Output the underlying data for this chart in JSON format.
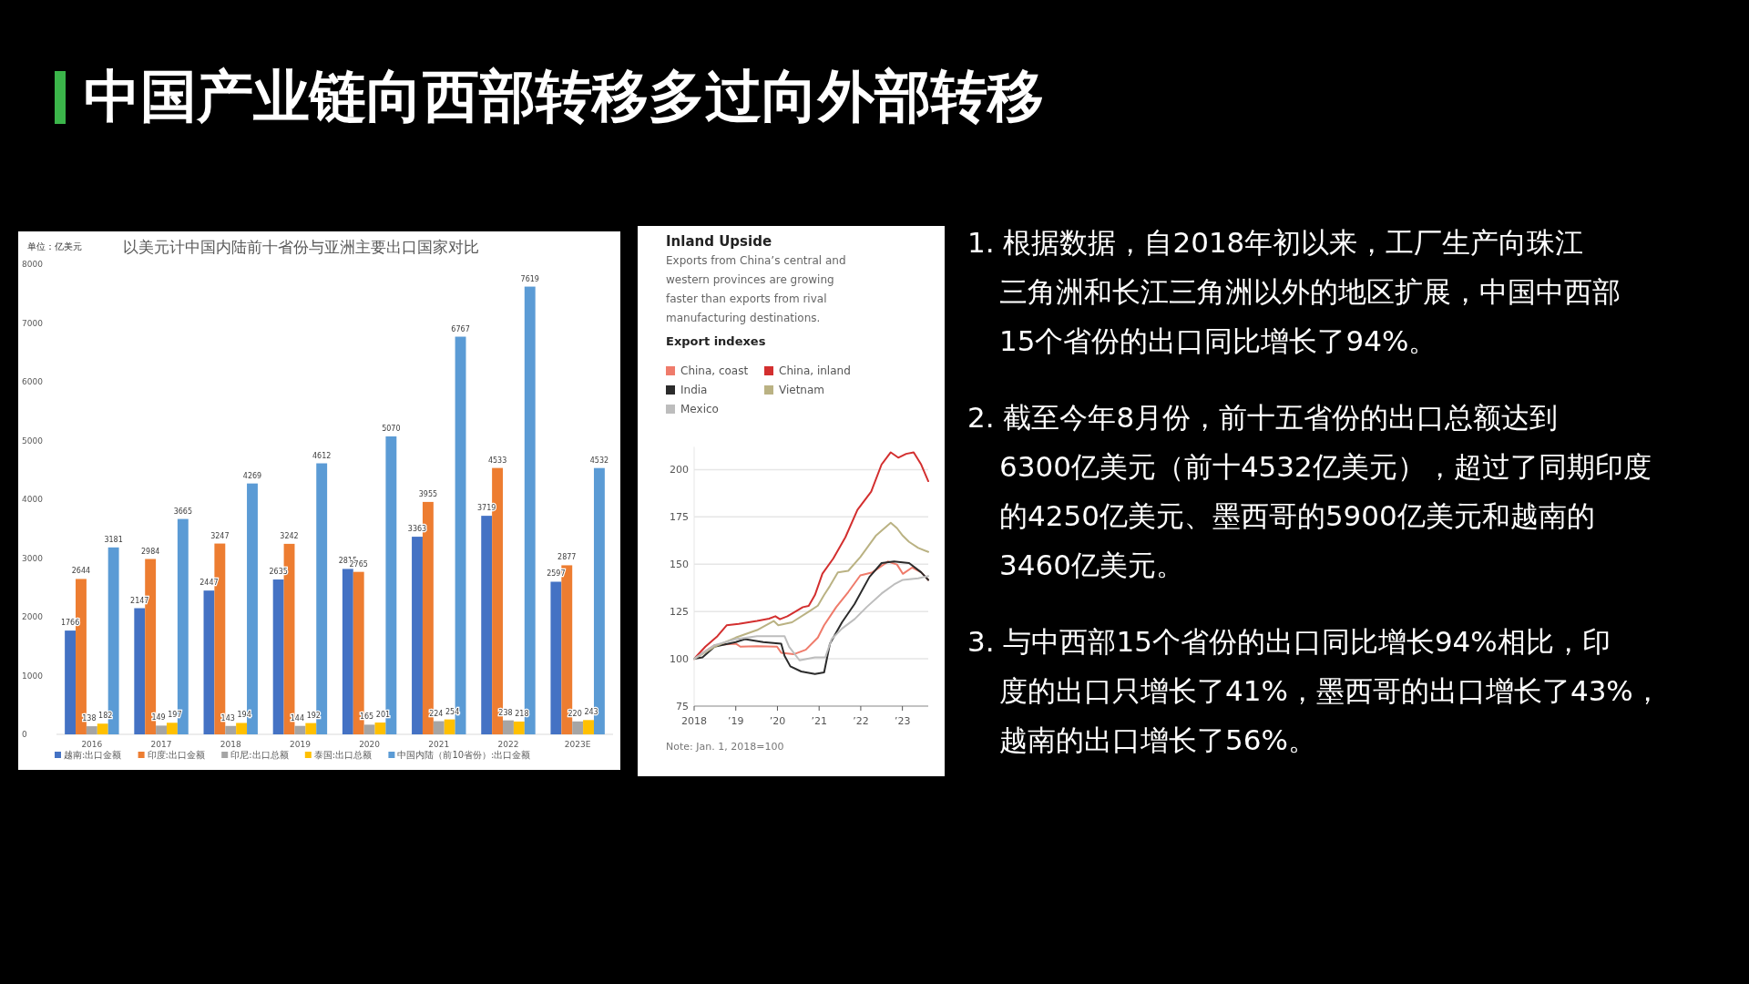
{
  "chart_data": [
    {
      "type": "bar",
      "title": "以美元计中国内陆前十省份与亚洲主要出口国家对比",
      "ylabel": "单位：亿美元",
      "categories": [
        "2016",
        "2017",
        "2018",
        "2019",
        "2020",
        "2021",
        "2022",
        "2023E"
      ],
      "series": [
        {
          "name": "越南:出口金额",
          "color": "#4472c4",
          "values": [
            1766,
            2147,
            2447,
            2635,
            2815,
            3363,
            3719,
            2597
          ]
        },
        {
          "name": "印度:出口金额",
          "color": "#ed7d31",
          "values": [
            2644,
            2984,
            3247,
            3242,
            2765,
            3955,
            4533,
            2877
          ]
        },
        {
          "name": "印尼:出口总额",
          "color": "#a5a5a5",
          "values": [
            138,
            149,
            143,
            144,
            165,
            224,
            238,
            220
          ]
        },
        {
          "name": "泰国:出口总额",
          "color": "#ffc000",
          "values": [
            182,
            197,
            194,
            192,
            201,
            254,
            218,
            243
          ]
        },
        {
          "name": "中国内陆（前10省份）:出口金额",
          "color": "#5b9bd5",
          "values": [
            3181,
            3665,
            4269,
            4612,
            5070,
            6767,
            7619,
            4532
          ]
        }
      ],
      "ylim": [
        0,
        8000
      ],
      "yticks": [
        0,
        1000,
        2000,
        3000,
        4000,
        5000,
        6000,
        7000,
        8000
      ],
      "data_labels": true,
      "legend": "bottom",
      "grid": false
    },
    {
      "type": "line",
      "title": "Inland Upside",
      "subtitle": "Exports from China’s central and western provinces are growing faster than exports from rival manufacturing destinations.",
      "legend_title": "Export indexes",
      "annotations": [
        "Note: Jan. 1, 2018=100"
      ],
      "series": [
        {
          "name": "China, coast",
          "color": "#ef7b6b",
          "x": [
            2018,
            2018.49,
            2019,
            2019.11,
            2019.51,
            2019.99,
            2020.09,
            2020.39,
            2020.68,
            2020.97,
            2021.12,
            2021.41,
            2021.7,
            2021.99,
            2022.28,
            2022.65,
            2022.87,
            2023.01,
            2023.23,
            2023.45,
            2023.62
          ],
          "values": [
            100,
            107.2,
            108,
            106.4,
            106.7,
            106.4,
            103.2,
            102.4,
            104.8,
            111.2,
            117.7,
            127.3,
            135.3,
            144.1,
            145.7,
            151.4,
            149.8,
            144.9,
            148.2,
            145.7,
            141.7
          ]
        },
        {
          "name": "China, inland",
          "color": "#d32f2f",
          "x": [
            2018,
            2018.27,
            2018.56,
            2018.78,
            2019.07,
            2019.51,
            2019.8,
            2019.95,
            2020.06,
            2020.24,
            2020.39,
            2020.61,
            2020.75,
            2020.9,
            2021.08,
            2021.34,
            2021.63,
            2021.92,
            2022.25,
            2022.5,
            2022.72,
            2022.9,
            2023.09,
            2023.27,
            2023.45,
            2023.62
          ],
          "values": [
            100,
            106.4,
            112,
            117.7,
            118.5,
            120,
            121.2,
            122.5,
            120.9,
            122.5,
            124.4,
            127.3,
            128,
            133.7,
            145,
            153,
            164.2,
            178.7,
            188.3,
            202.7,
            209.1,
            206.3,
            208.3,
            209.1,
            202.7,
            193.9
          ]
        },
        {
          "name": "India",
          "color": "#2b2b2b",
          "x": [
            2018,
            2018.2,
            2018.49,
            2019,
            2019.22,
            2019.66,
            2020.09,
            2020.17,
            2020.31,
            2020.57,
            2020.9,
            2021.12,
            2021.26,
            2021.55,
            2021.85,
            2022.21,
            2022.5,
            2022.8,
            2023.16,
            2023.45,
            2023.62
          ],
          "values": [
            100,
            100.8,
            106.4,
            108.8,
            110.4,
            108.8,
            108,
            101.6,
            96,
            93.3,
            92,
            92.8,
            108,
            119.3,
            128.9,
            143.3,
            150.6,
            151.4,
            150.6,
            145.7,
            141.7
          ]
        },
        {
          "name": "Vietnam",
          "color": "#bab283",
          "x": [
            2018,
            2018.49,
            2019,
            2019.51,
            2019.91,
            2020.02,
            2020.35,
            2020.75,
            2020.97,
            2021.12,
            2021.26,
            2021.45,
            2021.7,
            2021.99,
            2022.36,
            2022.72,
            2022.87,
            2023.01,
            2023.16,
            2023.38,
            2023.62
          ],
          "values": [
            100,
            106.4,
            111.2,
            115.2,
            120,
            117.7,
            119.3,
            124.9,
            128.1,
            133.7,
            138.5,
            145.7,
            146.5,
            153.8,
            165,
            171.9,
            169,
            165,
            161.8,
            158.6,
            156.5
          ]
        },
        {
          "name": "Mexico",
          "color": "#bdbdbd",
          "x": [
            2018,
            2018.49,
            2019,
            2019.51,
            2020.17,
            2020.28,
            2020.53,
            2020.9,
            2021.15,
            2021.3,
            2021.55,
            2021.85,
            2022.14,
            2022.5,
            2022.8,
            2023.01,
            2023.38,
            2023.62
          ],
          "values": [
            100,
            107.2,
            110.4,
            112,
            112,
            106.4,
            99.2,
            100.8,
            100.8,
            110.4,
            116,
            120.9,
            127.3,
            134.5,
            139.3,
            141.7,
            142.5,
            143.7
          ]
        }
      ],
      "xlim": [
        2018,
        2023.62
      ],
      "xticks": [
        {
          "value": 2018,
          "label": "2018"
        },
        {
          "value": 2019,
          "label": "’19"
        },
        {
          "value": 2020,
          "label": "’20"
        },
        {
          "value": 2021,
          "label": "’21"
        },
        {
          "value": 2022,
          "label": "’22"
        },
        {
          "value": 2023,
          "label": "’23"
        }
      ],
      "ylim": [
        75,
        212
      ],
      "yticks": [
        75,
        100,
        125,
        150,
        175,
        200
      ],
      "grid": "y",
      "legend": "top left"
    },
    {
      "type": "other",
      "title": "中国产业链向西部转移多过向外部转移",
      "annotations": [
        "1. 根据数据，自2018年初以来，工厂生产向珠江三角洲和长江三角洲以外的地区扩展，中国中西部15个省份的出口同比增长了94%。",
        "2. 截至今年8月份，前十五省份的出口总额达到6300亿美元（前十4532亿美元），超过了同期印度的4250亿美元、墨西哥的5900亿美元和越南的3460亿美元。",
        "3. 与中西部15个省份的出口同比增长94%相比，印度的出口只增长了41%，墨西哥的出口增长了43%，越南的出口增长了56%。"
      ]
    }
  ]
}
